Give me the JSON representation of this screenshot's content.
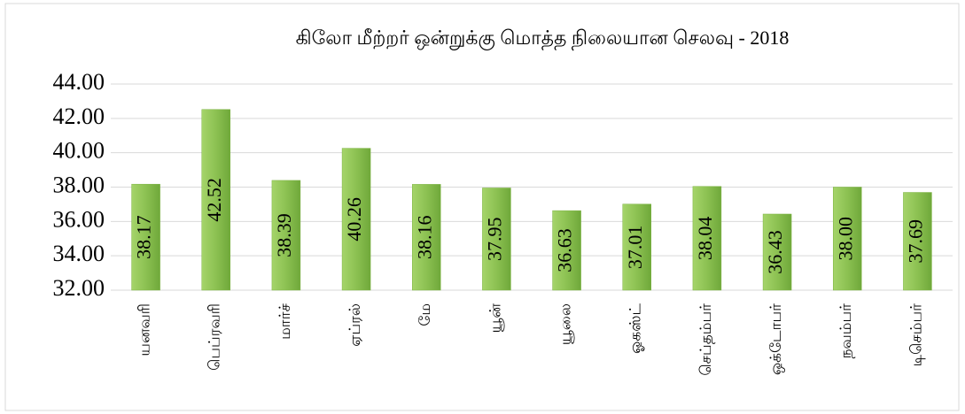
{
  "chart_data": {
    "type": "bar",
    "title": "கிலோ மீற்றர் ஒன்றுக்கு மொத்த நிலையான செலவு - 2018",
    "categories": [
      "யனவரி",
      "பெப்ரவரி",
      "மார்ச்",
      "ஏப்ரல்",
      "மே",
      "யூன்",
      "யூலை",
      "ஓகஸ்ட்",
      "செப்தம்பர்",
      "ஒக்டோபர்",
      "நவம்பர்",
      "டிசெம்பர்"
    ],
    "values": [
      38.17,
      42.52,
      38.39,
      40.26,
      38.16,
      37.95,
      36.63,
      37.01,
      38.04,
      36.43,
      38.0,
      37.69
    ],
    "value_labels": [
      "38.17",
      "42.52",
      "38.39",
      "40.26",
      "38.16",
      "37.95",
      "36.63",
      "37.01",
      "38.04",
      "36.43",
      "38.00",
      "37.69"
    ],
    "color": "#7cb342",
    "ylim": [
      32,
      44
    ],
    "yticks": [
      {
        "value": 32,
        "label": "32.00"
      },
      {
        "value": 34,
        "label": "34.00"
      },
      {
        "value": 36,
        "label": "36.00"
      },
      {
        "value": 38,
        "label": "38.00"
      },
      {
        "value": 40,
        "label": "40.00"
      },
      {
        "value": 42,
        "label": "42.00"
      },
      {
        "value": 44,
        "label": "44.00"
      }
    ],
    "grid": true
  }
}
